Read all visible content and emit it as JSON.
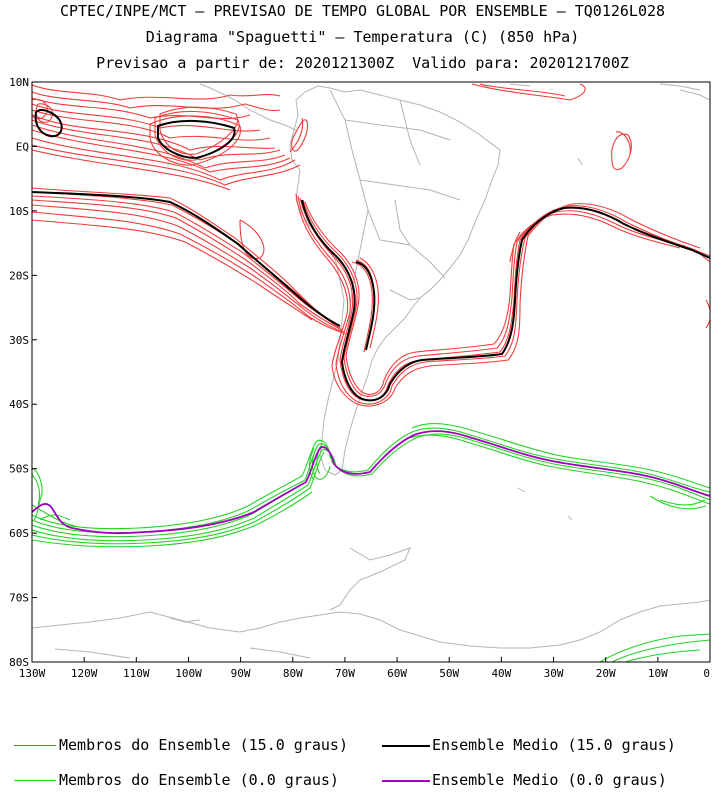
{
  "header": {
    "line1": "CPTEC/INPE/MCT – PREVISAO DE TEMPO GLOBAL POR ENSEMBLE – TQ0126L028",
    "line2": "Diagrama \"Spaguetti\" – Temperatura (C) (850 hPa)",
    "line3": "Previsao a partir de: 2020121300Z  Valido para: 2020121700Z"
  },
  "map": {
    "lat_labels": [
      "10N",
      "EQ",
      "10S",
      "20S",
      "30S",
      "40S",
      "50S",
      "60S",
      "70S",
      "80S"
    ],
    "lon_labels": [
      "130W",
      "120W",
      "110W",
      "100W",
      "90W",
      "80W",
      "70W",
      "60W",
      "50W",
      "40W",
      "30W",
      "20W",
      "10W",
      "0"
    ],
    "colors": {
      "members_15": "#f03c3c",
      "mean_15": "#000000",
      "members_0": "#28d228",
      "mean_0": "#a000c0",
      "coast": "#b4b4b4"
    }
  },
  "legend": {
    "members_15": "Membros do Ensemble (15.0 graus)",
    "mean_15": "Ensemble Medio (15.0 graus)",
    "members_0": "Membros do Ensemble (0.0 graus)",
    "mean_0": "Ensemble Medio (0.0 graus)"
  }
}
